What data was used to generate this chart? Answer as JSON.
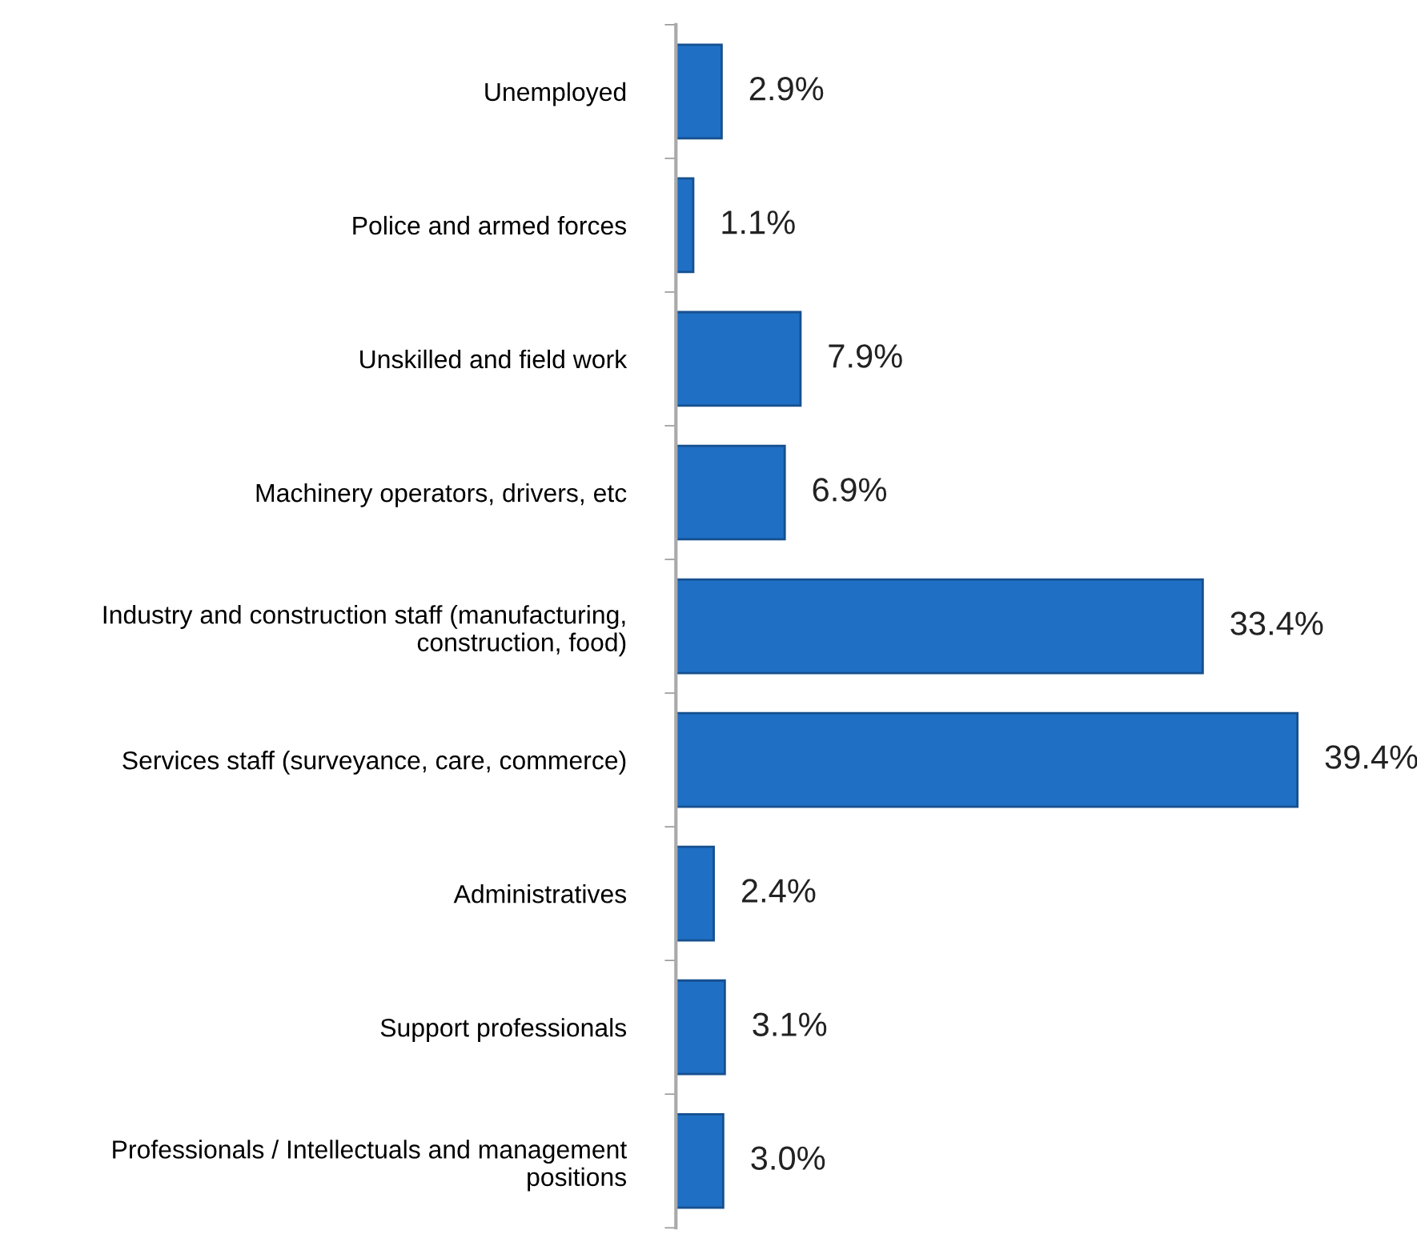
{
  "chart_data": {
    "type": "bar",
    "orientation": "horizontal",
    "categories": [
      "Unemployed",
      "Police and armed forces",
      "Unskilled and field work",
      "Machinery operators, drivers, etc",
      "Industry and construction staff (manufacturing,\nconstruction, food)",
      "Services staff (surveyance, care, commerce)",
      "Administratives",
      "Support professionals",
      "Professionals / Intellectuals and management\npositions"
    ],
    "values": [
      2.9,
      1.1,
      7.9,
      6.9,
      33.4,
      39.4,
      2.4,
      3.1,
      3.0
    ],
    "value_labels": [
      "2.9%",
      "1.1%",
      "7.9%",
      "6.9%",
      "33.4%",
      "39.4%",
      "2.4%",
      "3.1%",
      "3.0%"
    ],
    "color": "#1f6fc4",
    "grid": false,
    "legend": false
  }
}
